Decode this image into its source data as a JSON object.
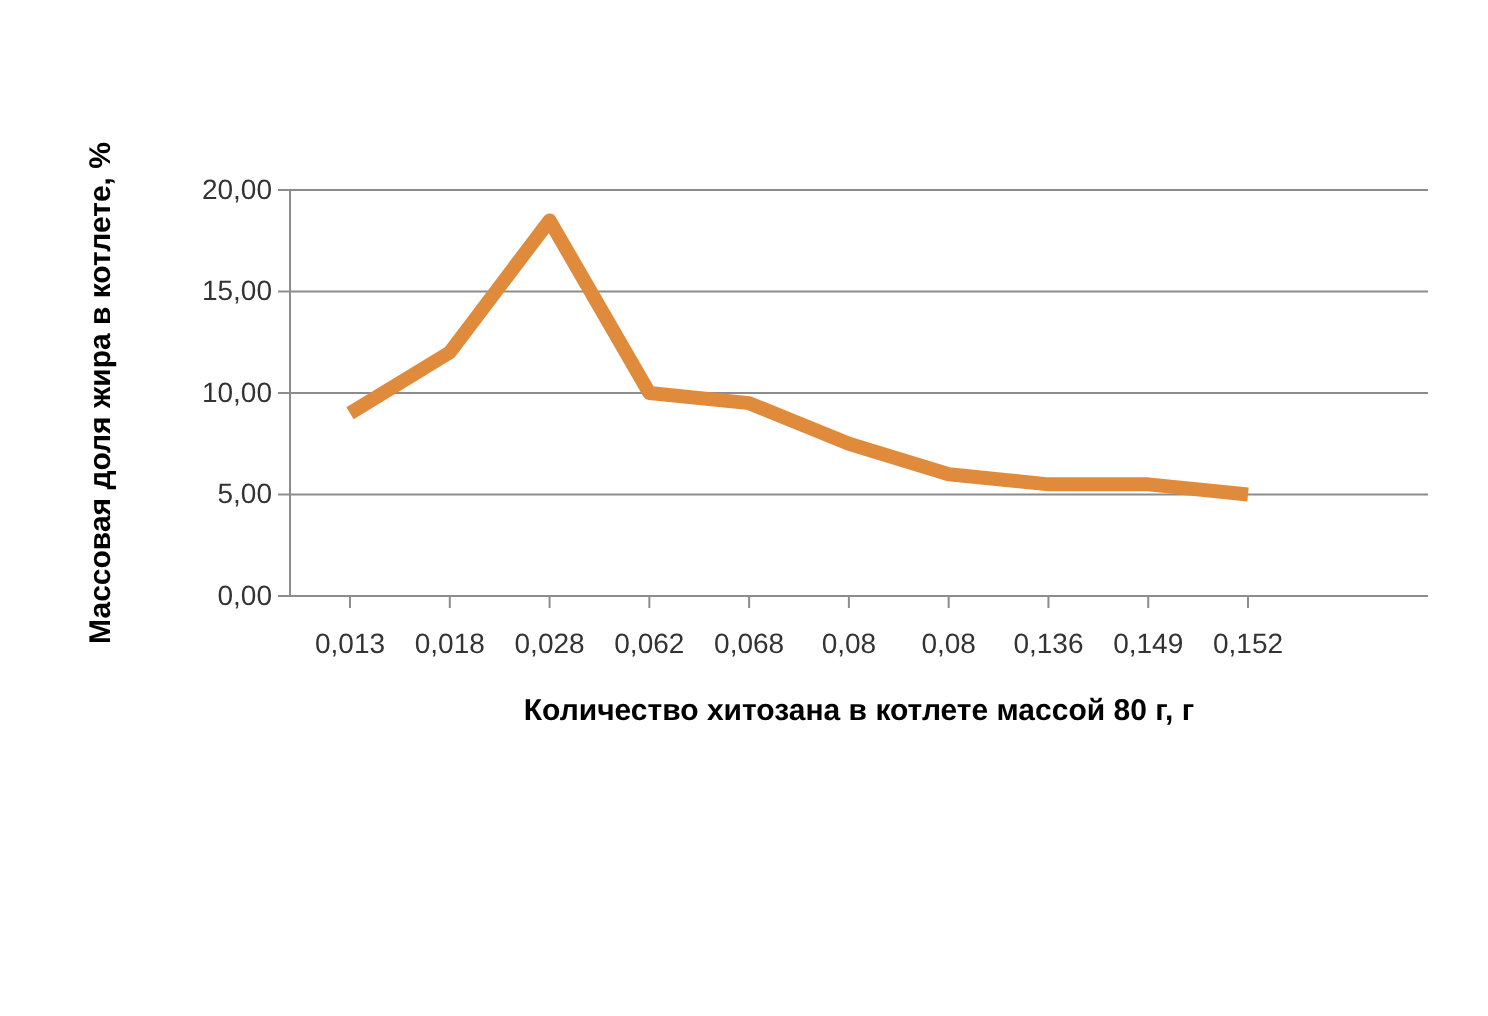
{
  "chart_data": {
    "type": "line",
    "xlabel": "Количество хитозана в котлете массой 80 г, г",
    "ylabel": "Массовая доля жира в котлете, %",
    "categories": [
      "0,013",
      "0,018",
      "0,028",
      "0,062",
      "0,068",
      "0,08",
      "0,08",
      "0,136",
      "0,149",
      "0,152"
    ],
    "series": [
      {
        "color": "#e08a3c",
        "values": [
          9,
          12,
          18.5,
          10,
          9.5,
          7.5,
          6,
          5.5,
          5.5,
          5
        ]
      }
    ],
    "ylim": [
      0,
      20
    ],
    "yticks": [
      {
        "value": 0,
        "label": "0,00"
      },
      {
        "value": 5,
        "label": "5,00"
      },
      {
        "value": 10,
        "label": "10,00"
      },
      {
        "value": 15,
        "label": "15,00"
      },
      {
        "value": 20,
        "label": "20,00"
      }
    ],
    "grid": "y",
    "marker": "none",
    "line_style": "solid"
  }
}
